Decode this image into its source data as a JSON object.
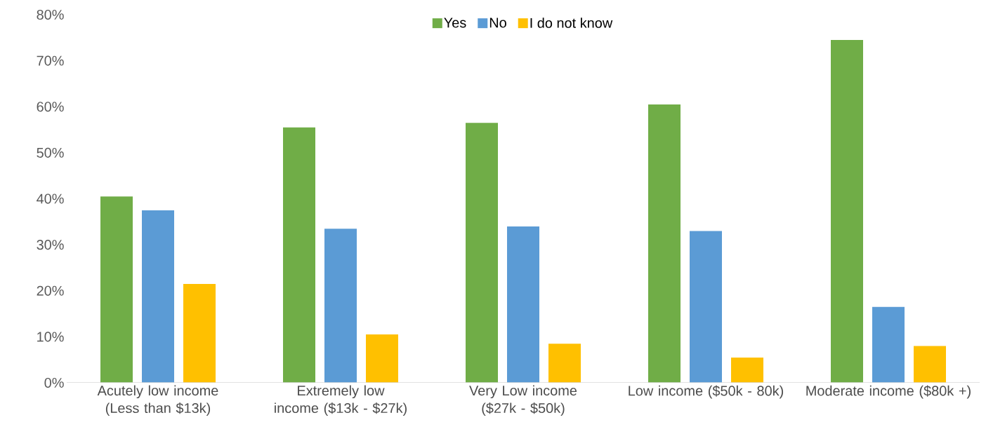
{
  "chart_data": {
    "type": "bar",
    "categories": [
      "Acutely low income (Less than $13k)",
      "Extremely low income ($13k - $27k)",
      "Very Low income ($27k - $50k)",
      "Low income ($50k - 80k)",
      "Moderate income ($80k +)"
    ],
    "series": [
      {
        "name": "Yes",
        "color": "#70ad47",
        "values": [
          40.5,
          55.5,
          56.5,
          60.5,
          74.5
        ]
      },
      {
        "name": "No",
        "color": "#5b9bd5",
        "values": [
          37.5,
          33.5,
          34,
          33,
          16.5
        ]
      },
      {
        "name": "I do not know",
        "color": "#ffc000",
        "values": [
          21.5,
          10.5,
          8.5,
          5.5,
          8
        ]
      }
    ],
    "ylim": [
      0,
      80
    ],
    "yticks": [
      {
        "value": 0,
        "label": "0%"
      },
      {
        "value": 10,
        "label": "10%"
      },
      {
        "value": 20,
        "label": "20%"
      },
      {
        "value": 30,
        "label": "30%"
      },
      {
        "value": 40,
        "label": "40%"
      },
      {
        "value": 50,
        "label": "50%"
      },
      {
        "value": 60,
        "label": "60%"
      },
      {
        "value": 70,
        "label": "70%"
      },
      {
        "value": 80,
        "label": "80%"
      }
    ],
    "grid": false,
    "legend": "top"
  }
}
